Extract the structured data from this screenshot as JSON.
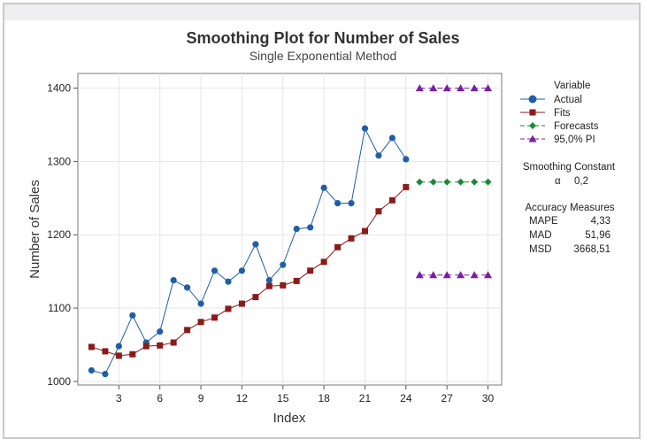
{
  "chart_data": {
    "type": "line",
    "title": "Smoothing Plot for Number of Sales",
    "subtitle": "Single Exponential Method",
    "xlabel": "Index",
    "ylabel": "Number of Sales",
    "xlim": [
      0,
      31
    ],
    "ylim": [
      995,
      1420
    ],
    "x_ticks": [
      3,
      6,
      9,
      12,
      15,
      18,
      21,
      24,
      27,
      30
    ],
    "y_ticks": [
      1000,
      1100,
      1200,
      1300,
      1400
    ],
    "grid": true,
    "legend_position": "right",
    "series": [
      {
        "name": "Actual",
        "color": "#1f5fa8",
        "marker": "circle",
        "line": "solid",
        "x": [
          1,
          2,
          3,
          4,
          5,
          6,
          7,
          8,
          9,
          10,
          11,
          12,
          13,
          14,
          15,
          16,
          17,
          18,
          19,
          20,
          21,
          22,
          23,
          24
        ],
        "values": [
          1015,
          1010,
          1048,
          1090,
          1053,
          1068,
          1138,
          1128,
          1106,
          1151,
          1136,
          1151,
          1187,
          1138,
          1159,
          1208,
          1210,
          1264,
          1243,
          1243,
          1345,
          1308,
          1332,
          1303
        ]
      },
      {
        "name": "Fits",
        "color": "#8b1a1a",
        "marker": "square",
        "line": "solid",
        "x": [
          1,
          2,
          3,
          4,
          5,
          6,
          7,
          8,
          9,
          10,
          11,
          12,
          13,
          14,
          15,
          16,
          17,
          18,
          19,
          20,
          21,
          22,
          23,
          24
        ],
        "values": [
          1047,
          1041,
          1035,
          1037,
          1048,
          1049,
          1053,
          1070,
          1081,
          1087,
          1099,
          1106,
          1115,
          1130,
          1131,
          1137,
          1151,
          1163,
          1183,
          1195,
          1205,
          1232,
          1247,
          1265
        ]
      },
      {
        "name": "Forecasts",
        "color": "#1a8a3a",
        "marker": "diamond",
        "line": "dashed",
        "x": [
          25,
          26,
          27,
          28,
          29,
          30
        ],
        "values": [
          1272,
          1272,
          1272,
          1272,
          1272,
          1272
        ]
      },
      {
        "name": "95,0% PI",
        "color": "#7b1fa2",
        "marker": "triangle",
        "line": "dashed",
        "x": [
          25,
          26,
          27,
          28,
          29,
          30
        ],
        "values": [
          1400,
          1400,
          1400,
          1400,
          1400,
          1400
        ],
        "lower": [
          1145,
          1145,
          1145,
          1145,
          1145,
          1145
        ]
      }
    ]
  },
  "legend": {
    "title": "Variable",
    "items": [
      "Actual",
      "Fits",
      "Forecasts",
      "95,0% PI"
    ]
  },
  "smoothing": {
    "title": "Smoothing Constant",
    "symbol": "α",
    "value": "0,2"
  },
  "accuracy": {
    "title": "Accuracy Measures",
    "rows": [
      {
        "label": "MAPE",
        "value": "4,33"
      },
      {
        "label": "MAD",
        "value": "51,96"
      },
      {
        "label": "MSD",
        "value": "3668,51"
      }
    ]
  }
}
